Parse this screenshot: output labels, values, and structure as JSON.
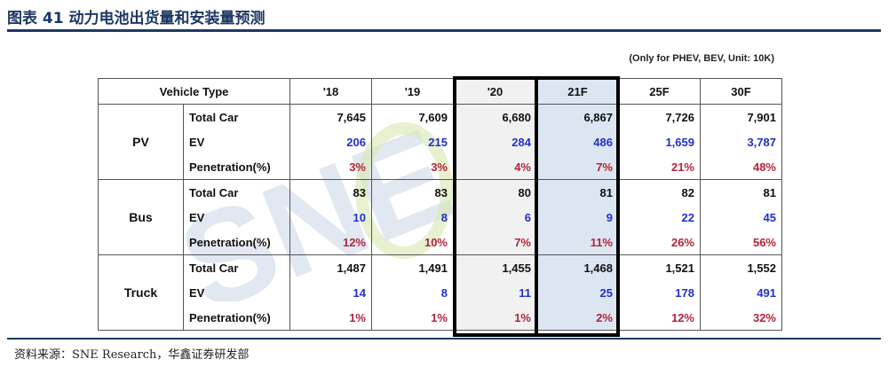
{
  "title": "图表 41 动力电池出货量和安装量预测",
  "note": "(Only for PHEV, BEV, Unit: 10K)",
  "watermark": "SNE Research",
  "colors": {
    "blue": "#1f2fcf",
    "red": "#b4233a",
    "rule": "#1f3864"
  },
  "table": {
    "header": [
      "Vehicle Type",
      "'18",
      "'19",
      "'20",
      "21F",
      "25F",
      "30F"
    ],
    "groups": [
      {
        "name": "PV",
        "rows": [
          {
            "label": "Total Car",
            "values": [
              "7,645",
              "7,609",
              "6,680",
              "6,867",
              "7,726",
              "7,901"
            ]
          },
          {
            "label": "EV",
            "values": [
              "206",
              "215",
              "284",
              "486",
              "1,659",
              "3,787"
            ]
          },
          {
            "label": "Penetration(%)",
            "values": [
              "3%",
              "3%",
              "4%",
              "7%",
              "21%",
              "48%"
            ]
          }
        ]
      },
      {
        "name": "Bus",
        "rows": [
          {
            "label": "Total Car",
            "values": [
              "83",
              "83",
              "80",
              "81",
              "82",
              "81"
            ]
          },
          {
            "label": "EV",
            "values": [
              "10",
              "8",
              "6",
              "9",
              "22",
              "45"
            ]
          },
          {
            "label": "Penetration(%)",
            "values": [
              "12%",
              "10%",
              "7%",
              "11%",
              "26%",
              "56%"
            ]
          }
        ]
      },
      {
        "name": "Truck",
        "rows": [
          {
            "label": "Total Car",
            "values": [
              "1,487",
              "1,491",
              "1,455",
              "1,468",
              "1,521",
              "1,552"
            ]
          },
          {
            "label": "EV",
            "values": [
              "14",
              "8",
              "11",
              "25",
              "178",
              "491"
            ]
          },
          {
            "label": "Penetration(%)",
            "values": [
              "1%",
              "1%",
              "1%",
              "2%",
              "12%",
              "32%"
            ]
          }
        ]
      }
    ]
  },
  "footer": "资料来源：SNE Research，华鑫证券研发部"
}
